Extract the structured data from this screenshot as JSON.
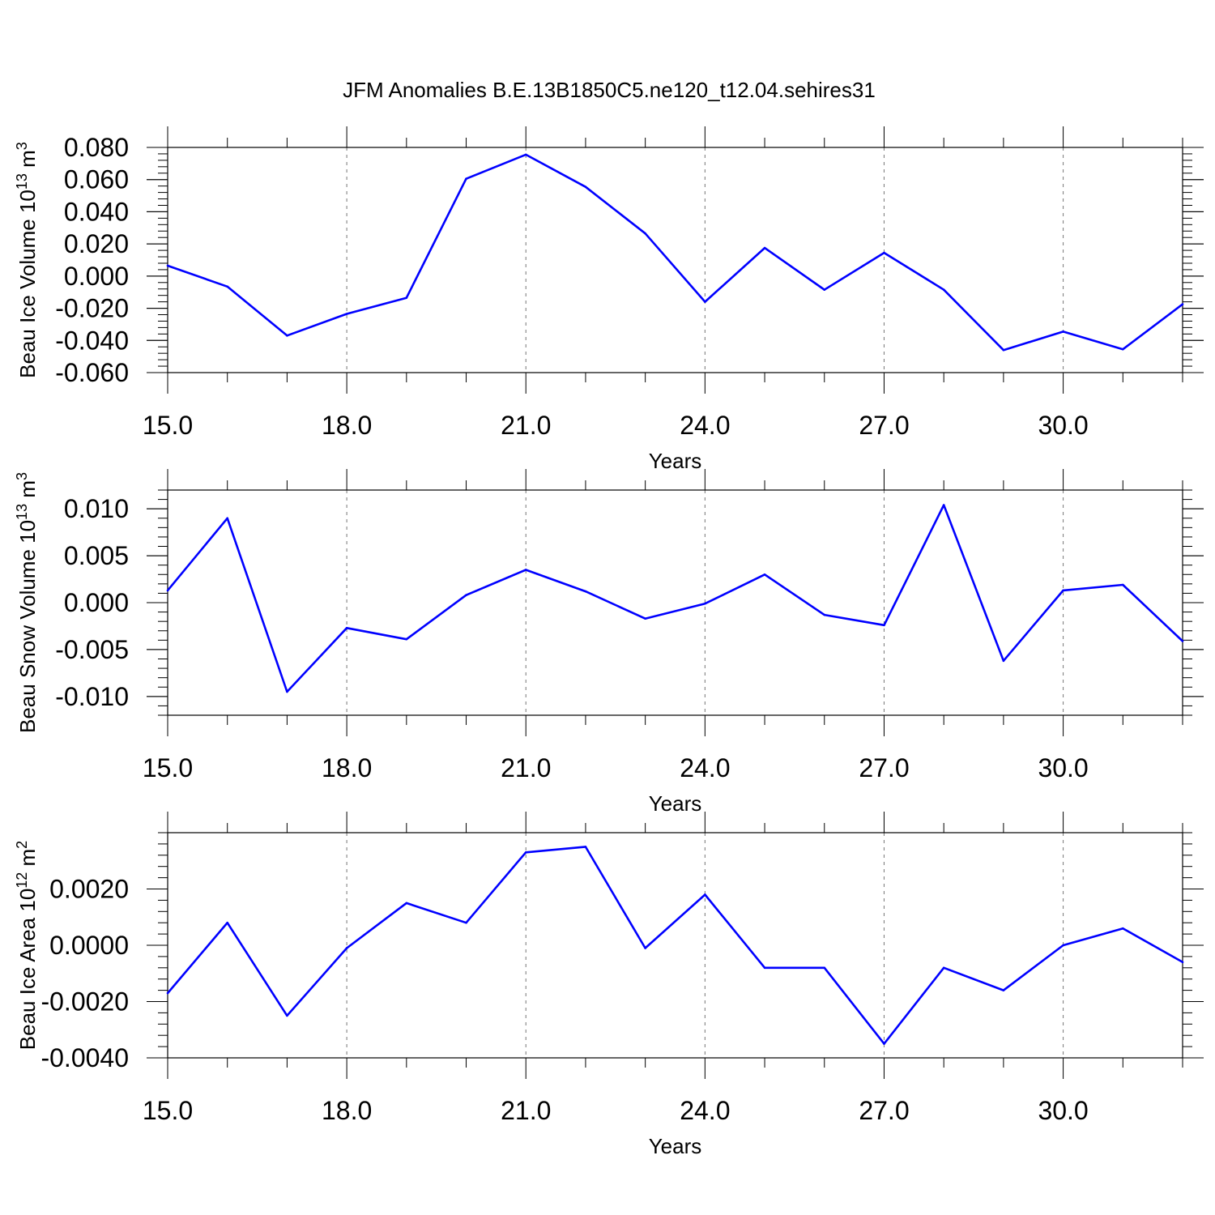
{
  "figure_title": "JFM Anomalies B.E.13B1850C5.ne120_t12.04.sehires31",
  "line_color": "#0000ff",
  "chart_data": [
    {
      "type": "line",
      "xlabel": "Years",
      "ylabel": {
        "base": "Beau Ice Volume 10",
        "exp1": "13",
        "unit": " m",
        "exp2": "3"
      },
      "xlim": [
        15,
        32
      ],
      "ylim": [
        -0.06,
        0.08
      ],
      "xticks": [
        15,
        18,
        21,
        24,
        27,
        30
      ],
      "xtick_labels": [
        "15.0",
        "18.0",
        "21.0",
        "24.0",
        "27.0",
        "30.0"
      ],
      "yticks": [
        -0.06,
        -0.04,
        -0.02,
        0.0,
        0.02,
        0.04,
        0.06,
        0.08
      ],
      "ytick_labels": [
        "-0.060",
        "-0.040",
        "-0.020",
        "0.000",
        "0.020",
        "0.040",
        "0.060",
        "0.080"
      ],
      "grid_x": "dashed",
      "x": [
        15,
        16,
        17,
        18,
        19,
        20,
        21,
        22,
        23,
        24,
        25,
        26,
        27,
        28,
        29,
        30,
        31,
        32
      ],
      "values": [
        0.0065,
        -0.0065,
        -0.037,
        -0.0235,
        -0.0135,
        0.0605,
        0.0755,
        0.0555,
        0.0265,
        -0.016,
        0.0175,
        -0.0085,
        0.0145,
        -0.0085,
        -0.046,
        -0.0345,
        -0.0455,
        -0.0175
      ]
    },
    {
      "type": "line",
      "xlabel": "Years",
      "ylabel": {
        "base": "Beau Snow Volume 10",
        "exp1": "13",
        "unit": " m",
        "exp2": "3"
      },
      "xlim": [
        15,
        32
      ],
      "ylim": [
        -0.012,
        0.012
      ],
      "xticks": [
        15,
        18,
        21,
        24,
        27,
        30
      ],
      "xtick_labels": [
        "15.0",
        "18.0",
        "21.0",
        "24.0",
        "27.0",
        "30.0"
      ],
      "yticks": [
        -0.01,
        -0.005,
        0.0,
        0.005,
        0.01
      ],
      "ytick_labels": [
        "-0.010",
        "-0.005",
        "0.000",
        "0.005",
        "0.010"
      ],
      "grid_x": "dashed",
      "x": [
        15,
        16,
        17,
        18,
        19,
        20,
        21,
        22,
        23,
        24,
        25,
        26,
        27,
        28,
        29,
        30,
        31,
        32
      ],
      "values": [
        0.0013,
        0.009,
        -0.0095,
        -0.0027,
        -0.0039,
        0.0008,
        0.0035,
        0.0012,
        -0.0017,
        -0.0001,
        0.003,
        -0.0013,
        -0.0024,
        0.0104,
        -0.0062,
        0.0013,
        0.0019,
        -0.0041
      ]
    },
    {
      "type": "line",
      "xlabel": "Years",
      "ylabel": {
        "base": "Beau Ice Area 10",
        "exp1": "12",
        "unit": " m",
        "exp2": "2"
      },
      "xlim": [
        15,
        32
      ],
      "ylim": [
        -0.004,
        0.004
      ],
      "xticks": [
        15,
        18,
        21,
        24,
        27,
        30
      ],
      "xtick_labels": [
        "15.0",
        "18.0",
        "21.0",
        "24.0",
        "27.0",
        "30.0"
      ],
      "yticks": [
        -0.004,
        -0.002,
        0.0,
        0.002
      ],
      "ytick_labels": [
        "-0.0040",
        "-0.0020",
        "0.0000",
        "0.0020"
      ],
      "grid_x": "dashed",
      "x": [
        15,
        16,
        17,
        18,
        19,
        20,
        21,
        22,
        23,
        24,
        25,
        26,
        27,
        28,
        29,
        30,
        31,
        32
      ],
      "values": [
        -0.0017,
        0.0008,
        -0.0025,
        -0.0001,
        0.0015,
        0.0008,
        0.0033,
        0.0035,
        -0.0001,
        0.0018,
        -0.0008,
        -0.0008,
        -0.0035,
        -0.0008,
        -0.0016,
        0.0,
        0.0006,
        -0.0006
      ]
    }
  ]
}
